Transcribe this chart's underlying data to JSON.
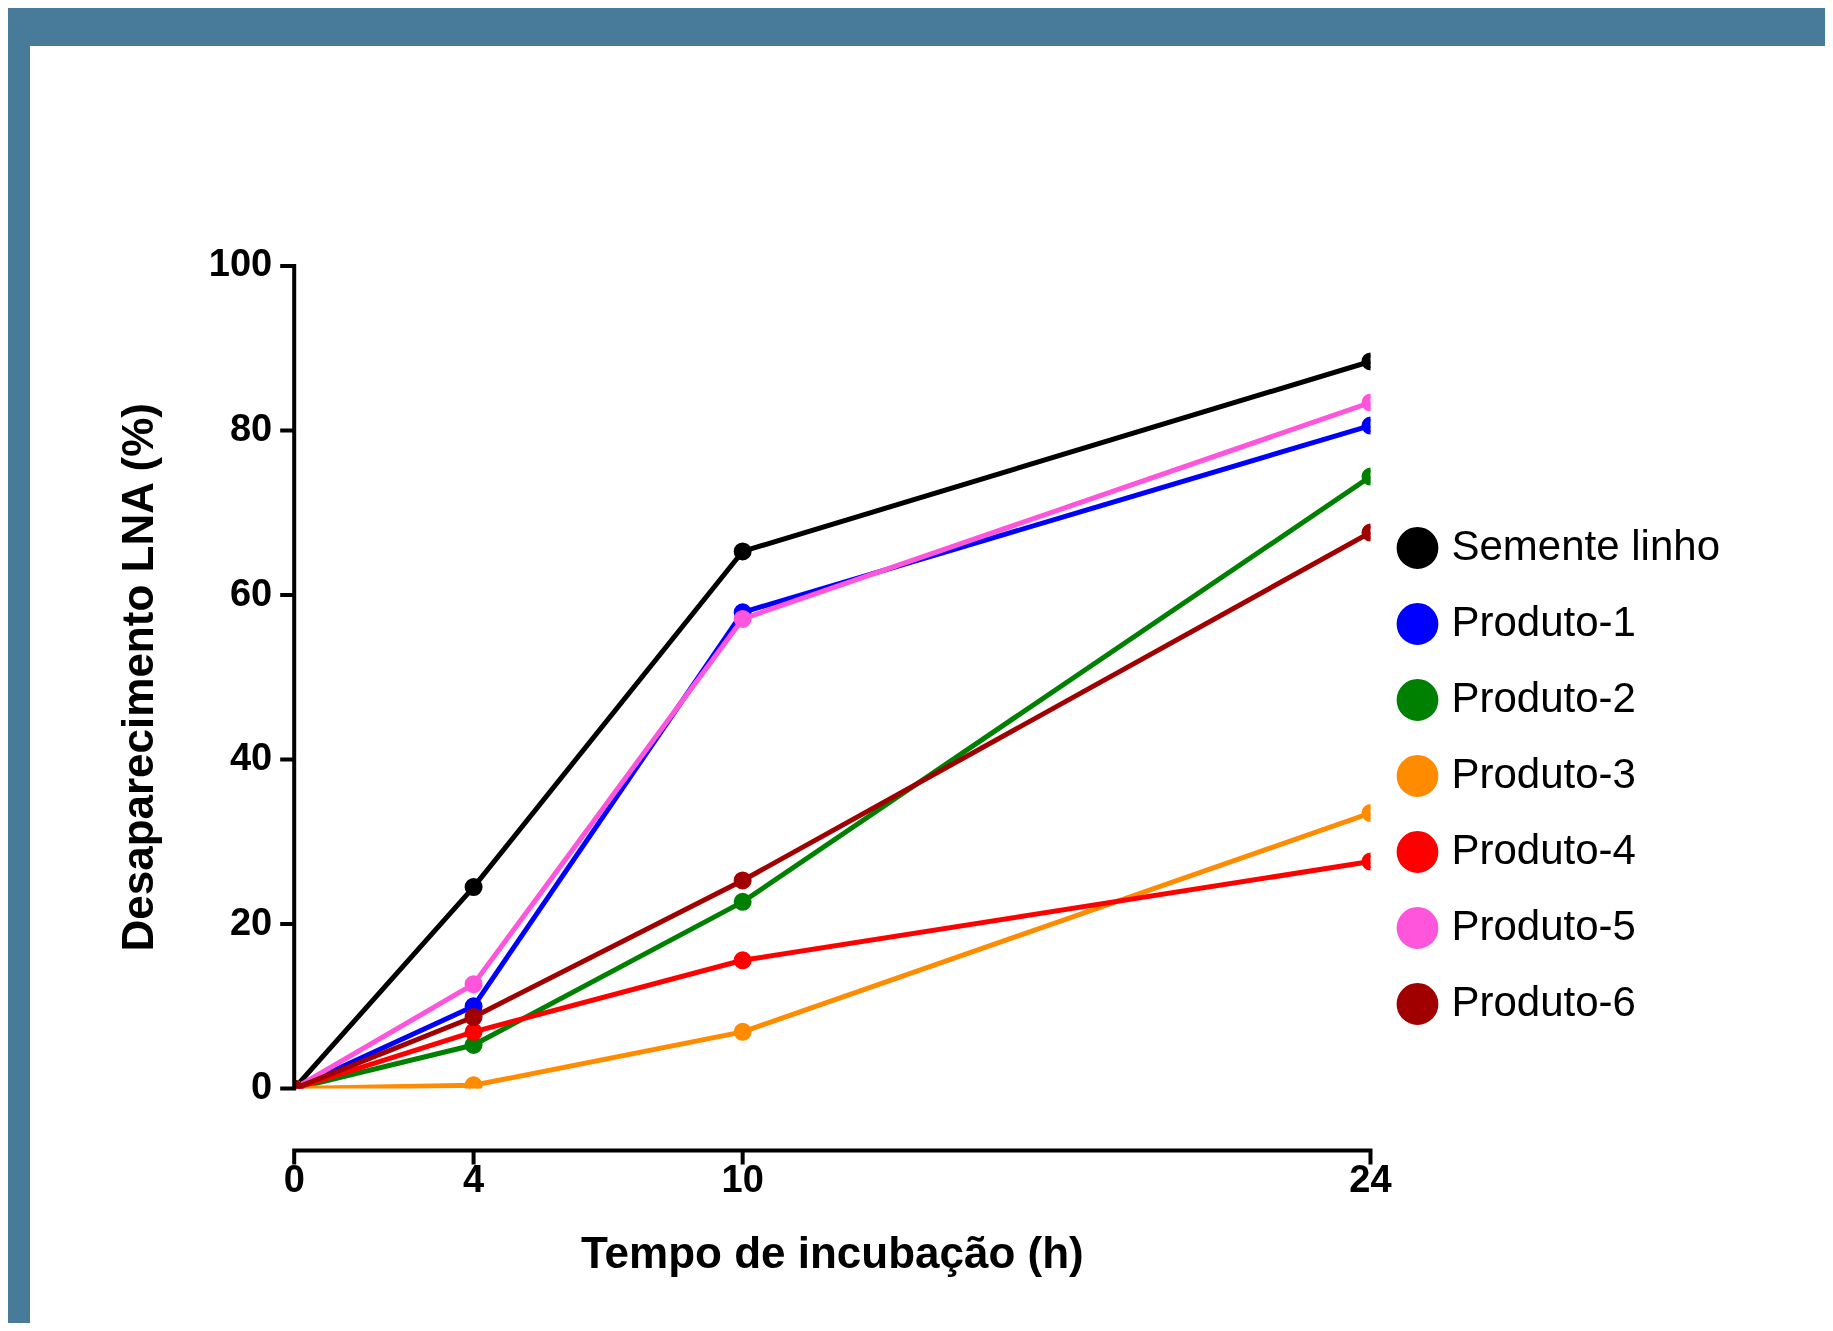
{
  "chart_data": {
    "type": "line",
    "xlabel": "Tempo de incubação (h)",
    "ylabel": "Desaparecimento LNA (%)",
    "x": [
      0,
      4,
      10,
      24
    ],
    "xlim": [
      0,
      24
    ],
    "xticks": [
      0,
      4,
      10,
      24
    ],
    "ylim": [
      0,
      100
    ],
    "yticks": [
      0,
      20,
      40,
      60,
      80,
      100
    ],
    "grid": false,
    "legend": "right",
    "marker": "circle",
    "line_style": "solid",
    "series": [
      {
        "name": "Semente linho",
        "color": "#000000",
        "values": [
          0,
          24.5,
          65.3,
          88.4
        ]
      },
      {
        "name": "Produto-1",
        "color": "#0000ff",
        "values": [
          0,
          10,
          57.9,
          80.6
        ]
      },
      {
        "name": "Produto-2",
        "color": "#008000",
        "values": [
          0,
          5.3,
          22.7,
          74.4
        ]
      },
      {
        "name": "Produto-3",
        "color": "#ff8c00",
        "values": [
          0,
          0.4,
          6.9,
          33.5
        ]
      },
      {
        "name": "Produto-4",
        "color": "#ff0000",
        "values": [
          0,
          6.9,
          15.6,
          27.6
        ]
      },
      {
        "name": "Produto-5",
        "color": "#ff55dd",
        "values": [
          0,
          12.7,
          57.1,
          83.4
        ]
      },
      {
        "name": "Produto-6",
        "color": "#a00000",
        "values": [
          0,
          8.7,
          25.3,
          67.6
        ]
      }
    ]
  }
}
